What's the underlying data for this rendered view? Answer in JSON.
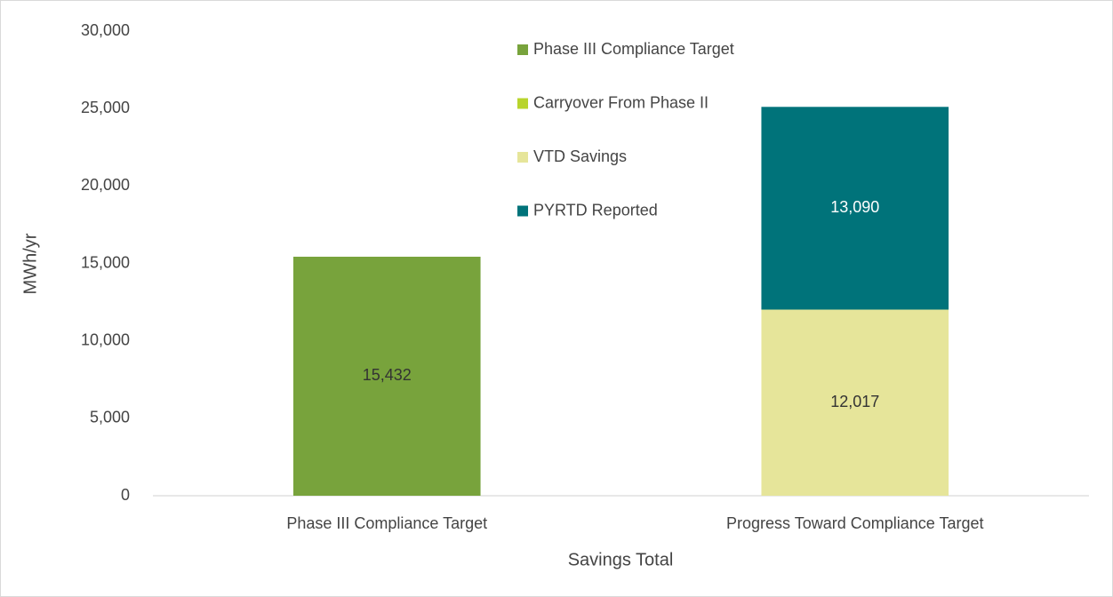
{
  "chart_data": {
    "type": "stacked_bar",
    "y_label": "MWh/yr",
    "x_label": "Savings Total",
    "categories": [
      "Phase III Compliance Target",
      "Progress Toward Compliance Target"
    ],
    "series": [
      {
        "name": "Phase III Compliance Target",
        "color": "#78a33c",
        "label_color": "#333333",
        "values": [
          15432,
          null
        ],
        "value_labels": [
          "15,432",
          null
        ]
      },
      {
        "name": "Carryover From Phase II",
        "color": "#b8d42c",
        "label_color": "#333333",
        "values": [
          null,
          null
        ],
        "value_labels": [
          null,
          null
        ]
      },
      {
        "name": "VTD Savings",
        "color": "#e6e59a",
        "label_color": "#333333",
        "values": [
          null,
          12017
        ],
        "value_labels": [
          null,
          "12,017"
        ]
      },
      {
        "name": "PYRTD Reported",
        "color": "#00737a",
        "label_color": "#ffffff",
        "values": [
          null,
          13090
        ],
        "value_labels": [
          null,
          "13,090"
        ]
      }
    ],
    "ylim": [
      0,
      30000
    ],
    "yticks": [
      0,
      {
        "value": 5000,
        "label": "5,000"
      },
      {
        "value": 10000,
        "label": "10,000"
      },
      {
        "value": 15000,
        "label": "15,000"
      },
      {
        "value": 20000,
        "label": "20,000"
      },
      {
        "value": 25000,
        "label": "25,000"
      },
      {
        "value": 30000,
        "label": "30,000"
      }
    ],
    "legend": "top-center",
    "grid": false
  }
}
